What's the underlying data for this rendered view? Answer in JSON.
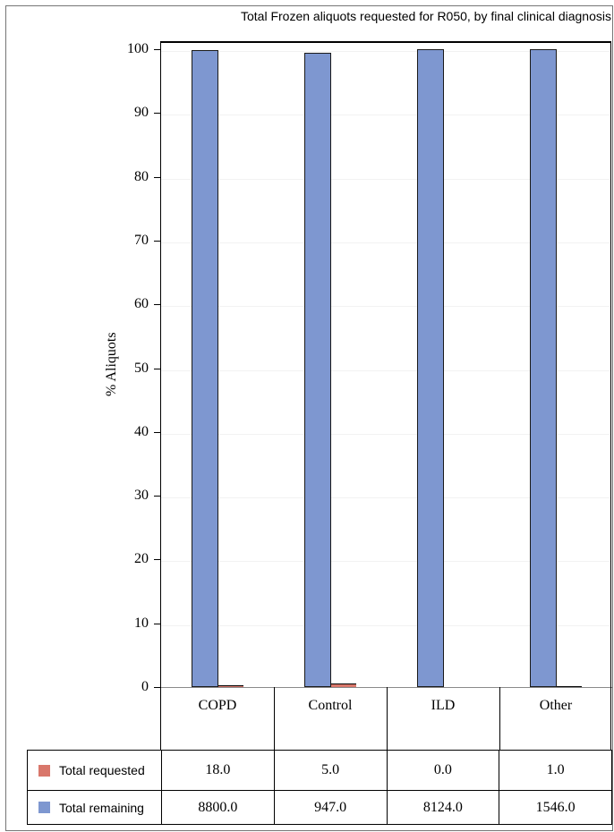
{
  "title": "Total Frozen aliquots requested for R050, by final clinical diagnosis",
  "chart_data": {
    "type": "bar",
    "title": "Total Frozen aliquots requested for R050, by final clinical diagnosis",
    "xlabel": "",
    "ylabel": "% Aliquots",
    "ylim": [
      0,
      100
    ],
    "yticks": [
      0,
      10,
      20,
      30,
      40,
      50,
      60,
      70,
      80,
      90,
      100
    ],
    "grid": "horizontal-faint",
    "bar_value_mode": "percent of category total (requested + remaining)",
    "categories": [
      "COPD",
      "Control",
      "ILD",
      "Other"
    ],
    "series": [
      {
        "name": "Total requested",
        "color": "#d9776b",
        "values": [
          18.0,
          5.0,
          0.0,
          1.0
        ]
      },
      {
        "name": "Total remaining",
        "color": "#7e97d0",
        "values": [
          8800.0,
          947.0,
          8124.0,
          1546.0
        ]
      }
    ],
    "percent_remaining": [
      99.8,
      99.5,
      100.0,
      99.9
    ],
    "percent_requested": [
      0.2,
      0.5,
      0.0,
      0.1
    ],
    "legend_position": "table rows below chart"
  },
  "table": {
    "legend_rows": [
      {
        "label": "Total requested",
        "swatch_color": "#d9776b",
        "values": [
          "18.0",
          "5.0",
          "0.0",
          "1.0"
        ]
      },
      {
        "label": "Total remaining",
        "swatch_color": "#7e97d0",
        "values": [
          "8800.0",
          "947.0",
          "8124.0",
          "1546.0"
        ]
      }
    ]
  },
  "colors": {
    "bar_remaining": "#7e97d0",
    "bar_requested": "#d9776b",
    "bar_border": "#1a1a1a",
    "gridline": "#f2f2f2",
    "axis_frame": "#000000",
    "baseline": "#8a8a8a",
    "page_border": "#757575"
  }
}
